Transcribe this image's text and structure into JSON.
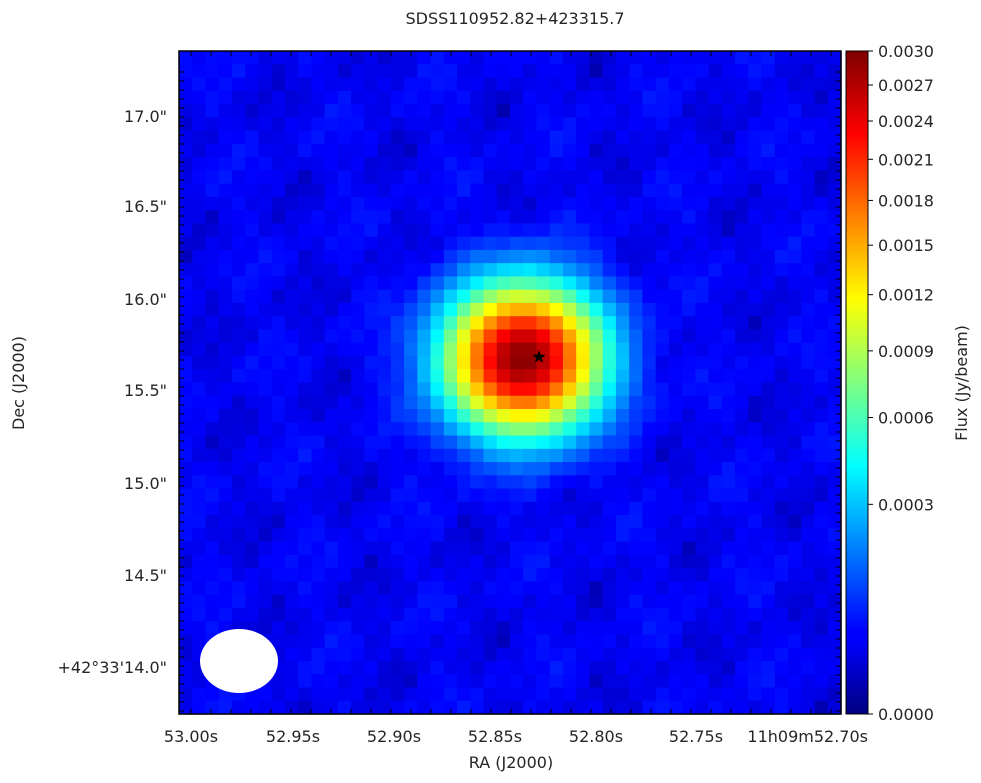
{
  "chart_data": {
    "type": "heatmap",
    "title": "SDSS110952.82+423315.7",
    "xlabel": "RA (J2000)",
    "ylabel": "Dec (J2000)",
    "x_ticks": [
      "53.00s",
      "52.95s",
      "52.90s",
      "52.85s",
      "52.80s",
      "52.75s",
      "11h09m52.70s"
    ],
    "y_ticks": [
      "17.0\"",
      "16.5\"",
      "16.0\"",
      "15.5\"",
      "15.0\"",
      "14.5\"",
      "+42°33'14.0\""
    ],
    "colorbar": {
      "label": "Flux (Jy/beam)",
      "ticks": [
        "0.0030",
        "0.0027",
        "0.0024",
        "0.0021",
        "0.0018",
        "0.0015",
        "0.0012",
        "0.0009",
        "0.0006",
        "0.0003",
        "0.0000"
      ],
      "colormap": "jet",
      "range": [
        0.0,
        0.003
      ],
      "scale": "sqrt"
    },
    "source": {
      "marker": "star",
      "peak_flux": 0.0029
    },
    "beam": {
      "shape": "ellipse",
      "color": "#ffffff"
    },
    "background_level": 4e-05
  }
}
